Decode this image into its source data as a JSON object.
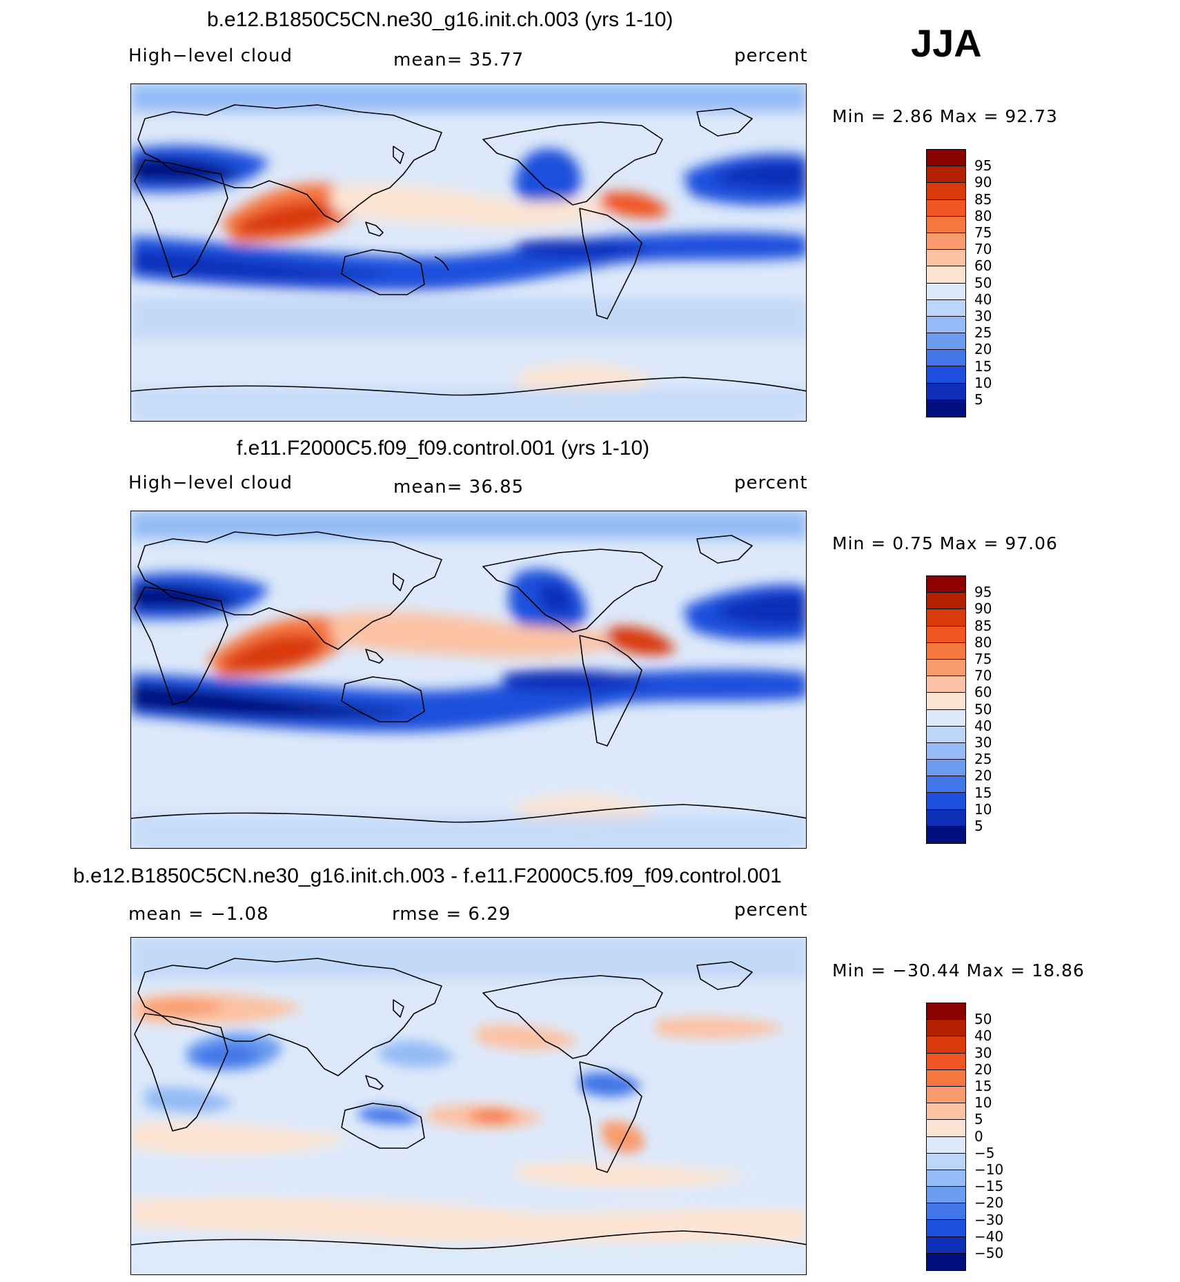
{
  "season": "JJA",
  "panels": [
    {
      "title": "b.e12.B1850C5CN.ne30_g16.init.ch.003 (yrs 1-10)",
      "left_label": "High−level cloud",
      "mid_label": "mean=   35.77",
      "right_label": "percent",
      "minmax": "Min =    2.86  Max =   92.73",
      "colorbar": {
        "labels": [
          "95",
          "90",
          "85",
          "80",
          "75",
          "70",
          "60",
          "50",
          "40",
          "30",
          "25",
          "20",
          "15",
          "10",
          "5"
        ],
        "colors": [
          "#8b0000",
          "#b32000",
          "#d93a0a",
          "#f05522",
          "#f6773f",
          "#f99b6d",
          "#fcc2a4",
          "#fde4d2",
          "#dde9fa",
          "#bcd5f8",
          "#94bbf5",
          "#6a9cf0",
          "#4376e8",
          "#1e4fdc",
          "#0f2fb8",
          "#00117f"
        ]
      }
    },
    {
      "title": "f.e11.F2000C5.f09_f09.control.001 (yrs 1-10)",
      "left_label": "High−level cloud",
      "mid_label": "mean=   36.85",
      "right_label": "percent",
      "minmax": "Min =    0.75  Max =   97.06",
      "colorbar": {
        "labels": [
          "95",
          "90",
          "85",
          "80",
          "75",
          "70",
          "60",
          "50",
          "40",
          "30",
          "25",
          "20",
          "15",
          "10",
          "5"
        ],
        "colors": [
          "#8b0000",
          "#b32000",
          "#d93a0a",
          "#f05522",
          "#f6773f",
          "#f99b6d",
          "#fcc2a4",
          "#fde4d2",
          "#dde9fa",
          "#bcd5f8",
          "#94bbf5",
          "#6a9cf0",
          "#4376e8",
          "#1e4fdc",
          "#0f2fb8",
          "#00117f"
        ]
      }
    },
    {
      "title": "b.e12.B1850C5CN.ne30_g16.init.ch.003 - f.e11.F2000C5.f09_f09.control.001",
      "left_label": "mean =   −1.08",
      "mid_label": "rmse =    6.29",
      "right_label": "percent",
      "minmax": "Min = −30.44  Max =   18.86",
      "colorbar": {
        "labels": [
          "50",
          "40",
          "30",
          "20",
          "15",
          "10",
          "5",
          "0",
          "−5",
          "−10",
          "−15",
          "−20",
          "−30",
          "−40",
          "−50"
        ],
        "colors": [
          "#8b0000",
          "#b32000",
          "#d93a0a",
          "#f05522",
          "#f6773f",
          "#f99b6d",
          "#fcc2a4",
          "#fde4d2",
          "#dde9fa",
          "#bcd5f8",
          "#94bbf5",
          "#6a9cf0",
          "#4376e8",
          "#1e4fdc",
          "#0f2fb8",
          "#00117f"
        ]
      }
    }
  ]
}
